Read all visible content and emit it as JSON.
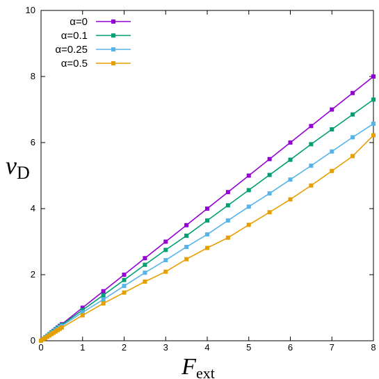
{
  "chart_data": {
    "type": "line",
    "title": "",
    "xlabel": "F",
    "xlabel_sub": "ext",
    "ylabel": "v",
    "ylabel_sub": "D",
    "xlim": [
      0,
      8
    ],
    "ylim": [
      0,
      10
    ],
    "xticks": [
      "0",
      "1",
      "2",
      "3",
      "4",
      "5",
      "6",
      "7",
      "8"
    ],
    "yticks": [
      "0",
      "2",
      "4",
      "6",
      "8",
      "10"
    ],
    "grid": false,
    "legend_position": "top-left",
    "x": [
      0,
      0.05,
      0.1,
      0.15,
      0.2,
      0.25,
      0.3,
      0.35,
      0.4,
      0.45,
      0.5,
      1,
      1.5,
      2,
      2.5,
      3,
      3.5,
      4,
      4.5,
      5,
      5.5,
      6,
      6.5,
      7,
      7.5,
      8
    ],
    "series": [
      {
        "name": "α=0",
        "color": "#9400d3",
        "values": [
          0,
          0.05,
          0.1,
          0.15,
          0.2,
          0.25,
          0.3,
          0.35,
          0.4,
          0.45,
          0.5,
          1.0,
          1.5,
          2.0,
          2.5,
          3.0,
          3.5,
          4.0,
          4.5,
          5.0,
          5.5,
          6.0,
          6.5,
          7.0,
          7.5,
          8.0
        ]
      },
      {
        "name": "α=0.1",
        "color": "#009e73",
        "values": [
          0,
          0.05,
          0.1,
          0.15,
          0.2,
          0.25,
          0.29,
          0.34,
          0.39,
          0.43,
          0.48,
          0.93,
          1.38,
          1.84,
          2.3,
          2.75,
          3.18,
          3.64,
          4.1,
          4.56,
          5.02,
          5.48,
          5.95,
          6.4,
          6.85,
          7.3
        ]
      },
      {
        "name": "α=0.25",
        "color": "#56b4e9",
        "values": [
          0,
          0.04,
          0.09,
          0.14,
          0.18,
          0.23,
          0.27,
          0.32,
          0.36,
          0.41,
          0.45,
          0.86,
          1.25,
          1.66,
          2.06,
          2.44,
          2.84,
          3.22,
          3.64,
          4.06,
          4.46,
          4.88,
          5.3,
          5.73,
          6.16,
          6.57
        ]
      },
      {
        "name": "α=0.5",
        "color": "#e69f00",
        "values": [
          0,
          0.04,
          0.08,
          0.12,
          0.16,
          0.2,
          0.24,
          0.28,
          0.32,
          0.36,
          0.4,
          0.77,
          1.13,
          1.46,
          1.79,
          2.09,
          2.47,
          2.81,
          3.12,
          3.51,
          3.89,
          4.28,
          4.7,
          5.14,
          5.59,
          6.22
        ]
      }
    ]
  }
}
